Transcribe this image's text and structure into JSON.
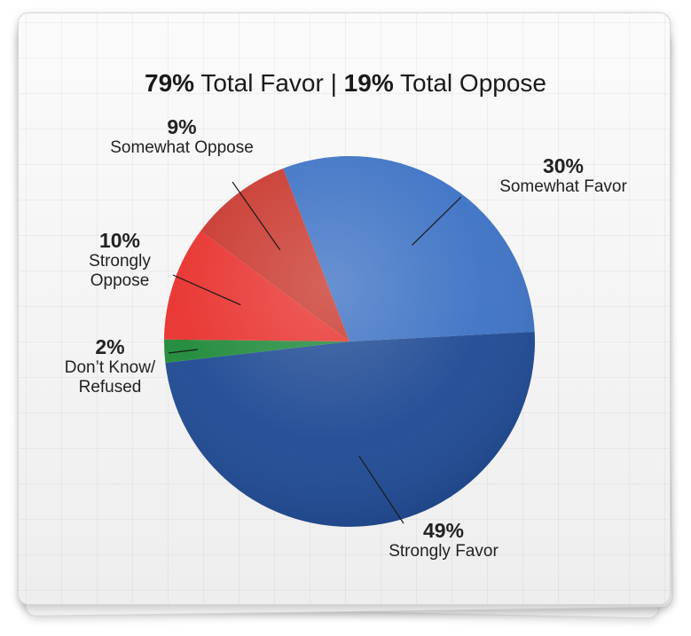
{
  "headline": {
    "favor_value": "79%",
    "favor_text": "Total Favor",
    "separator": "|",
    "oppose_value": "19%",
    "oppose_text": "Total Oppose"
  },
  "chart_data": {
    "type": "pie",
    "title": "79% Total Favor | 19% Total Oppose",
    "slices": [
      {
        "label": "Somewhat Favor",
        "value": 30,
        "value_label": "30%",
        "color": "#3d72c4"
      },
      {
        "label": "Strongly Favor",
        "value": 49,
        "value_label": "49%",
        "color": "#1f4a94"
      },
      {
        "label": "Don’t Know/ Refused",
        "value": 2,
        "value_label": "2%",
        "color": "#1f8a3a"
      },
      {
        "label": "Strongly Oppose",
        "value": 10,
        "value_label": "10%",
        "color": "#e8322e"
      },
      {
        "label": "Somewhat Oppose",
        "value": 9,
        "value_label": "9%",
        "color": "#c9382e"
      }
    ]
  },
  "labels": {
    "somewhat_oppose": {
      "pct": "9%",
      "lines": [
        "Somewhat Oppose"
      ]
    },
    "somewhat_favor": {
      "pct": "30%",
      "lines": [
        "Somewhat Favor"
      ]
    },
    "strongly_oppose": {
      "pct": "10%",
      "lines": [
        "Strongly",
        "Oppose"
      ]
    },
    "dont_know": {
      "pct": "2%",
      "lines": [
        "Don’t Know/",
        "Refused"
      ]
    },
    "strongly_favor": {
      "pct": "49%",
      "lines": [
        "Strongly Favor"
      ]
    }
  }
}
